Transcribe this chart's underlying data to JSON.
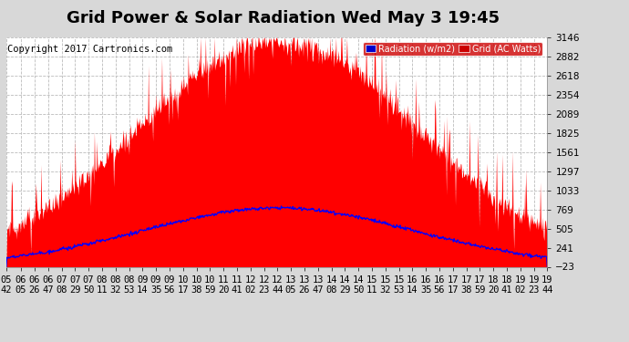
{
  "title": "Grid Power & Solar Radiation Wed May 3 19:45",
  "copyright": "Copyright 2017 Cartronics.com",
  "bg_color": "#d8d8d8",
  "plot_bg_color": "#ffffff",
  "yticks": [
    -23.0,
    241.0,
    505.1,
    769.2,
    1033.2,
    1297.3,
    1561.3,
    1825.4,
    2089.4,
    2353.5,
    2617.5,
    2881.6,
    3145.6
  ],
  "ylim": [
    -23.0,
    3145.6
  ],
  "grid_color": "#bbbbbb",
  "radiation_color": "#0000ff",
  "grid_watts_color": "#ff0000",
  "legend_rad_label": "Radiation (w/m2)",
  "legend_grid_label": "Grid (AC Watts)",
  "title_fontsize": 13,
  "copyright_fontsize": 7.5,
  "tick_fontsize": 7.5,
  "xtick_labels": [
    "05\n42",
    "06\n05",
    "06\n26",
    "06\n47",
    "07\n08",
    "07\n29",
    "07\n50",
    "08\n11",
    "08\n32",
    "08\n53",
    "09\n14",
    "09\n35",
    "09\n56",
    "10\n17",
    "10\n38",
    "10\n59",
    "11\n20",
    "11\n41",
    "12\n02",
    "12\n23",
    "12\n44",
    "13\n05",
    "13\n26",
    "13\n47",
    "14\n08",
    "14\n29",
    "14\n50",
    "15\n11",
    "15\n32",
    "15\n53",
    "16\n14",
    "16\n35",
    "16\n56",
    "17\n17",
    "17\n38",
    "17\n59",
    "18\n20",
    "18\n41",
    "19\n02",
    "19\n23",
    "19\n44"
  ]
}
